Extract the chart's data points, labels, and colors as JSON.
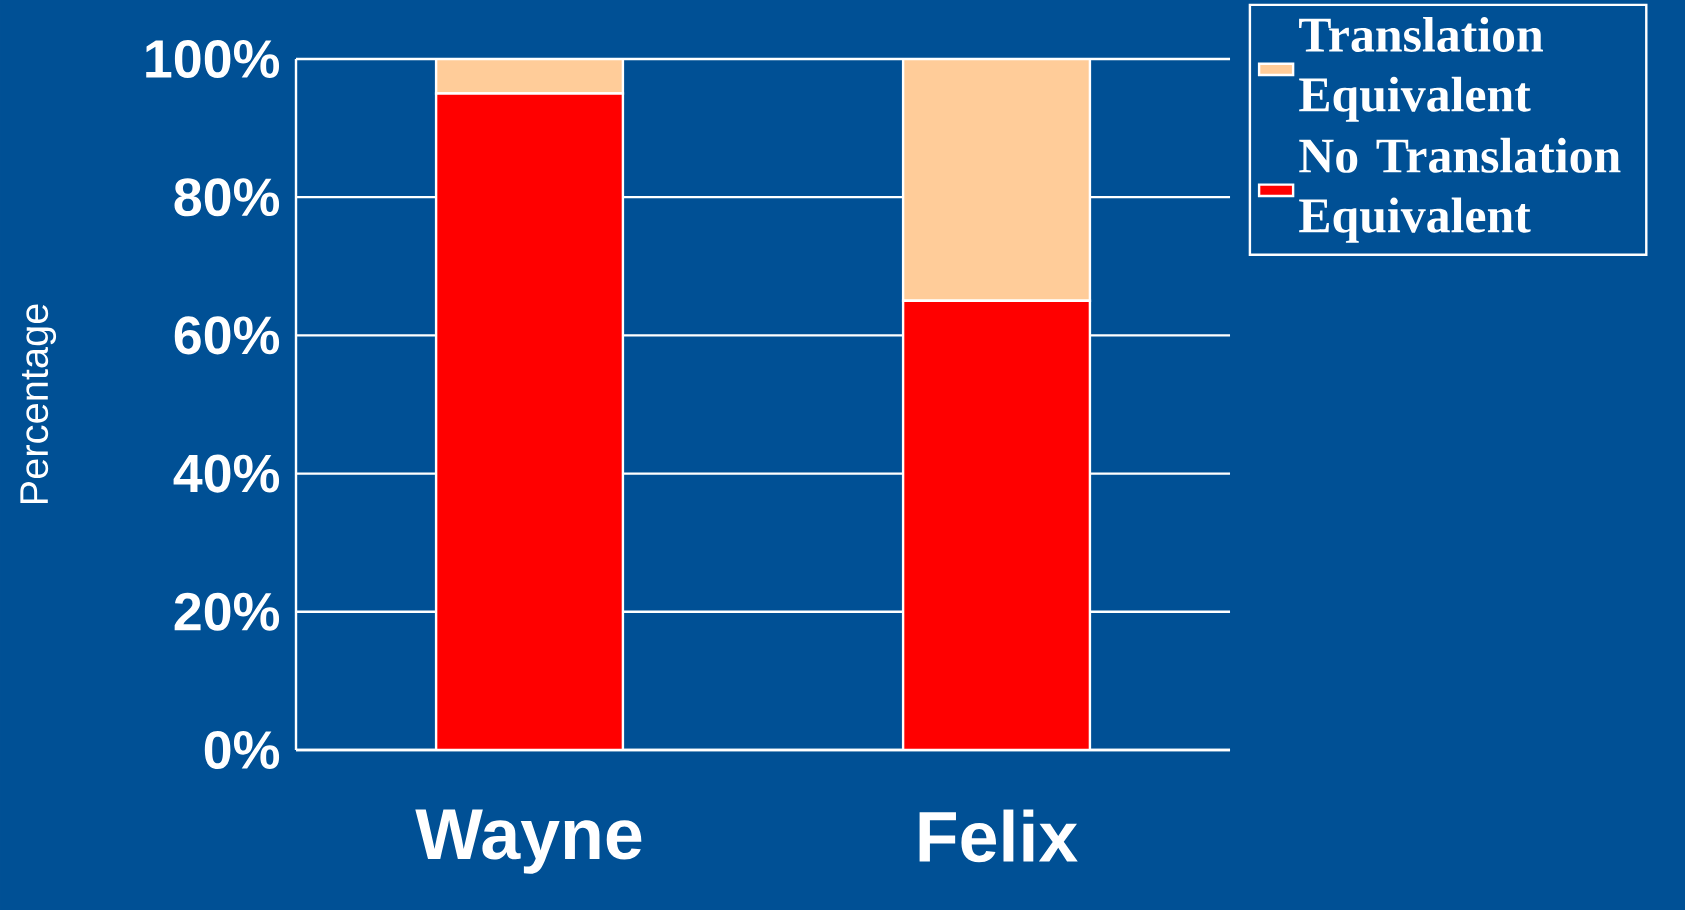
{
  "chart_data": {
    "type": "bar",
    "stacked": true,
    "ylabel": "Percentage",
    "categories": [
      "Wayne",
      "Felix"
    ],
    "series": [
      {
        "name": "No Translation Equivalent",
        "color": "#ff0000",
        "values": [
          95,
          65
        ]
      },
      {
        "name": "Translation Equivalent",
        "color": "#ffcc99",
        "values": [
          5,
          35
        ]
      }
    ],
    "ylim": [
      0,
      100
    ],
    "yticks": [
      {
        "value": 0,
        "label": "0%"
      },
      {
        "value": 20,
        "label": "20%"
      },
      {
        "value": 40,
        "label": "40%"
      },
      {
        "value": 60,
        "label": "60%"
      },
      {
        "value": 80,
        "label": "80%"
      },
      {
        "value": 100,
        "label": "100%"
      }
    ],
    "grid": "y",
    "legend": "top right"
  }
}
